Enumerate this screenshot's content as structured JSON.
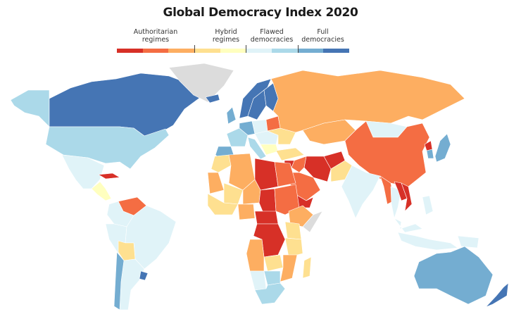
{
  "title": "Global Democracy Index 2020",
  "legend": {
    "categories": [
      {
        "label": "Authoritarian\nregimes",
        "levels": [
          0,
          1,
          2
        ]
      },
      {
        "label": "Hybrid\nregimes",
        "levels": [
          3,
          4
        ]
      },
      {
        "label": "Flawed\ndemocracies",
        "levels": [
          5,
          6
        ]
      },
      {
        "label": "Full\ndemocracies",
        "levels": [
          7,
          8
        ]
      }
    ],
    "colors": [
      "#d73027",
      "#f46d43",
      "#fdae61",
      "#fee090",
      "#ffffbf",
      "#e0f3f8",
      "#abd9e9",
      "#74add1",
      "#4575b4"
    ],
    "no_data_color": "#dcdcdc"
  },
  "region_levels": {
    "alaska": 6,
    "canada": 8,
    "greenland": -1,
    "usa": 6,
    "mexico": 5,
    "central-america": 4,
    "cuba": 0,
    "venezuela": 1,
    "colombia": 5,
    "peru": 5,
    "brazil": 5,
    "bolivia": 3,
    "argentina": 5,
    "chile": 7,
    "uruguay": 8,
    "iceland": 8,
    "norway": 8,
    "sweden": 8,
    "finland": 8,
    "uk": 7,
    "france": 6,
    "spain": 7,
    "germany": 7,
    "poland": 5,
    "eastern-europe": 5,
    "balkans": 4,
    "italy": 6,
    "turkey": 3,
    "belarus": 1,
    "ukraine": 3,
    "russia": 2,
    "kazakhstan": 2,
    "mongolia": 5,
    "china": 1,
    "north-korea": 0,
    "south-korea": 7,
    "japan": 7,
    "iran": 0,
    "saudi-arabia": 1,
    "yemen": 0,
    "iraq": 1,
    "syria": 0,
    "afghanistan": 0,
    "pakistan": 3,
    "india": 5,
    "myanmar": 1,
    "thailand": 5,
    "vietnam": 0,
    "laos": 0,
    "malaysia": 5,
    "indonesia": 5,
    "philippines": 5,
    "morocco": 3,
    "algeria": 2,
    "libya": 0,
    "egypt": 1,
    "mauritania": 2,
    "mali": 3,
    "niger": 2,
    "chad": 0,
    "sudan": 1,
    "ethiopia": 2,
    "somalia": -1,
    "west-africa": 3,
    "nigeria": 2,
    "car": 0,
    "drc": 0,
    "kenya": 3,
    "tanzania": 3,
    "angola": 2,
    "zambia": 3,
    "mozambique": 2,
    "namibia": 5,
    "botswana": 6,
    "south-africa": 6,
    "madagascar": 3,
    "australia": 7,
    "new-zealand": 8,
    "papua-new-guinea": 5
  }
}
